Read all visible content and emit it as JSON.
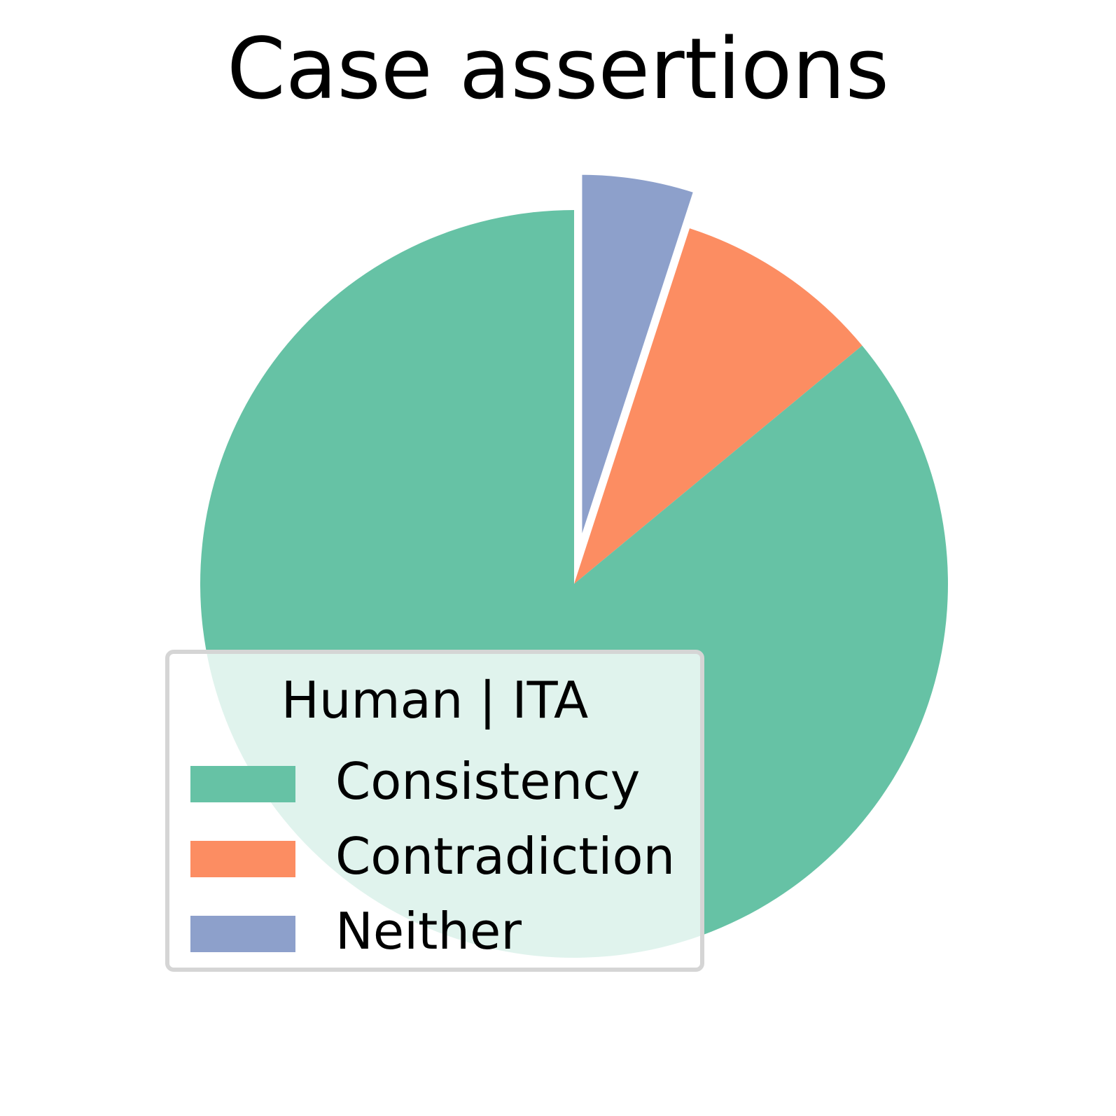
{
  "chart_data": {
    "type": "pie",
    "title": "Case assertions",
    "legend_title": "Human | ITA",
    "legend_position": "lower-left",
    "start_angle": "top",
    "direction": "clockwise",
    "slices": [
      {
        "label": "Neither",
        "value": 5.0,
        "color": "#8da0cb",
        "exploded": true
      },
      {
        "label": "Contradiction",
        "value": 9.0,
        "color": "#fc8d62",
        "exploded": false
      },
      {
        "label": "Consistency",
        "value": 86.0,
        "color": "#66c2a5",
        "exploded": false
      }
    ],
    "legend_order": [
      "Consistency",
      "Contradiction",
      "Neither"
    ]
  }
}
